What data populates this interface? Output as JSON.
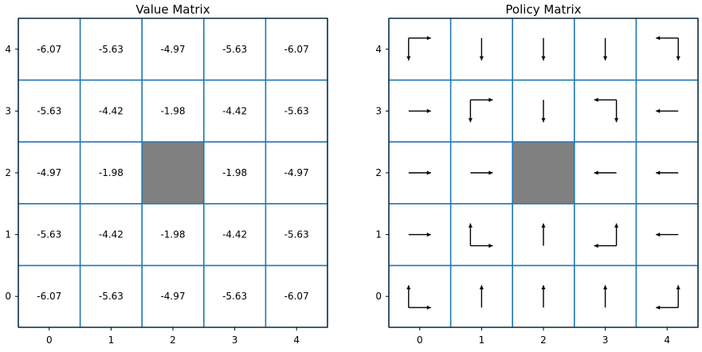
{
  "chart_data": [
    {
      "type": "heatmap",
      "title": "Value Matrix",
      "x_ticks": [
        "0",
        "1",
        "2",
        "3",
        "4"
      ],
      "y_ticks": [
        "0",
        "1",
        "2",
        "3",
        "4"
      ],
      "xlim": [
        -0.5,
        4.5
      ],
      "ylim": [
        -0.5,
        4.5
      ],
      "grid": true,
      "grid_color": "#1f77b4",
      "blocked_color": "#808080",
      "blocked_cells": [
        [
          2,
          2
        ]
      ],
      "rows": [
        {
          "y": 4,
          "values": [
            "-6.07",
            "-5.63",
            "-4.97",
            "-5.63",
            "-6.07"
          ]
        },
        {
          "y": 3,
          "values": [
            "-5.63",
            "-4.42",
            "-1.98",
            "-4.42",
            "-5.63"
          ]
        },
        {
          "y": 2,
          "values": [
            "-4.97",
            "-1.98",
            null,
            "-1.98",
            "-4.97"
          ]
        },
        {
          "y": 1,
          "values": [
            "-5.63",
            "-4.42",
            "-1.98",
            "-4.42",
            "-5.63"
          ]
        },
        {
          "y": 0,
          "values": [
            "-6.07",
            "-5.63",
            "-4.97",
            "-5.63",
            "-6.07"
          ]
        }
      ]
    },
    {
      "type": "heatmap",
      "title": "Policy Matrix",
      "x_ticks": [
        "0",
        "1",
        "2",
        "3",
        "4"
      ],
      "y_ticks": [
        "0",
        "1",
        "2",
        "3",
        "4"
      ],
      "xlim": [
        -0.5,
        4.5
      ],
      "ylim": [
        -0.5,
        4.5
      ],
      "grid": true,
      "grid_color": "#1f77b4",
      "blocked_color": "#808080",
      "blocked_cells": [
        [
          2,
          2
        ]
      ],
      "rows": [
        {
          "y": 4,
          "values": [
            [
              "right",
              "down"
            ],
            [
              "down"
            ],
            [
              "down"
            ],
            [
              "down"
            ],
            [
              "left",
              "down"
            ]
          ]
        },
        {
          "y": 3,
          "values": [
            [
              "right"
            ],
            [
              "right",
              "down"
            ],
            [
              "down"
            ],
            [
              "left",
              "down"
            ],
            [
              "left"
            ]
          ]
        },
        {
          "y": 2,
          "values": [
            [
              "right"
            ],
            [
              "right"
            ],
            null,
            [
              "left"
            ],
            [
              "left"
            ]
          ]
        },
        {
          "y": 1,
          "values": [
            [
              "right"
            ],
            [
              "right",
              "up"
            ],
            [
              "up"
            ],
            [
              "left",
              "up"
            ],
            [
              "left"
            ]
          ]
        },
        {
          "y": 0,
          "values": [
            [
              "right",
              "up"
            ],
            [
              "up"
            ],
            [
              "up"
            ],
            [
              "up"
            ],
            [
              "left",
              "up"
            ]
          ]
        }
      ]
    }
  ]
}
